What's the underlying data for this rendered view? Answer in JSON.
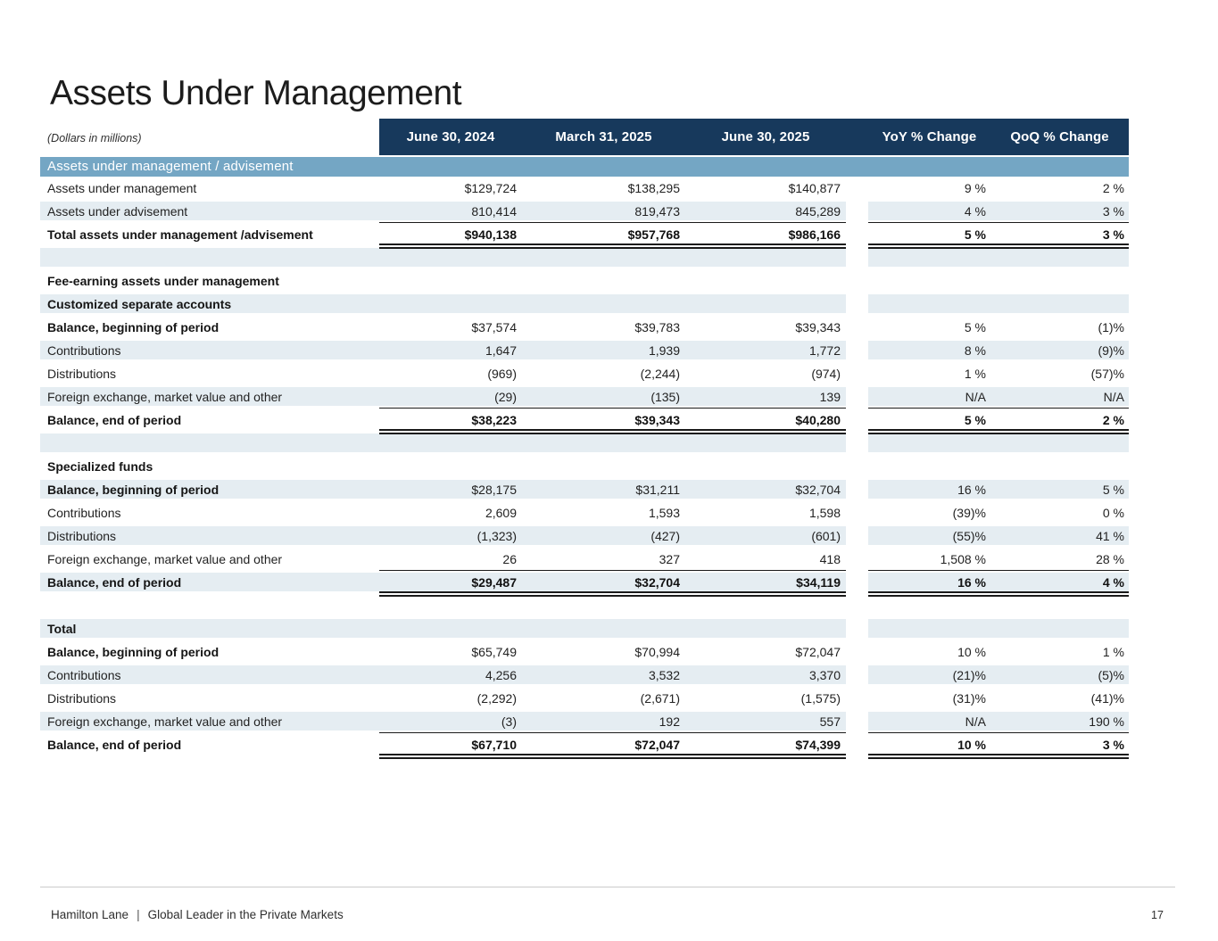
{
  "page": {
    "title": "Assets Under Management",
    "units_note": "(Dollars in millions)",
    "page_number": "17"
  },
  "footer": {
    "brand": "Hamilton Lane",
    "separator": "|",
    "tagline": "Global Leader in the Private Markets"
  },
  "colors": {
    "header_bg": "#17395C",
    "section_band_bg": "#74A6C4",
    "row_shading": "#E5EDF2",
    "rule_line": "#1A1A1A"
  },
  "table": {
    "columns": [
      "June 30, 2024",
      "March 31, 2025",
      "June 30, 2025",
      "YoY % Change",
      "QoQ % Change"
    ],
    "rows": [
      {
        "kind": "section",
        "name": "section-band-aum-advisement",
        "label": "Assets under management / advisement"
      },
      {
        "kind": "data",
        "name": "row-assets-under-management",
        "label": "Assets under management",
        "shaded": false,
        "values": [
          "$129,724",
          "$138,295",
          "$140,877",
          "9 %",
          "2 %"
        ]
      },
      {
        "kind": "data",
        "name": "row-assets-under-advisement",
        "label": "Assets under advisement",
        "shaded": true,
        "values": [
          "810,414",
          "819,473",
          "845,289",
          "4 %",
          "3 %"
        ]
      },
      {
        "kind": "data",
        "name": "row-total-aum-advisement",
        "label": "Total assets under management /advisement",
        "shaded": false,
        "bold_label": true,
        "bold_values": true,
        "rule_above": true,
        "rule_below": true,
        "values": [
          "$940,138",
          "$957,768",
          "$986,166",
          "5 %",
          "3 %"
        ]
      },
      {
        "kind": "spacer",
        "name": "spacer-1",
        "shaded": true
      },
      {
        "kind": "heading",
        "name": "row-fee-earning-heading",
        "label": "Fee-earning assets under management",
        "shaded": false
      },
      {
        "kind": "heading",
        "name": "row-customized-accounts-heading",
        "label": "Customized separate accounts",
        "shaded": true
      },
      {
        "kind": "data",
        "name": "row-csa-balance-beginning",
        "label": "Balance, beginning of period",
        "shaded": false,
        "bold_label": true,
        "values": [
          "$37,574",
          "$39,783",
          "$39,343",
          "5 %",
          "(1)%"
        ]
      },
      {
        "kind": "data",
        "name": "row-csa-contributions",
        "label": "Contributions",
        "shaded": true,
        "values": [
          "1,647",
          "1,939",
          "1,772",
          "8 %",
          "(9)%"
        ]
      },
      {
        "kind": "data",
        "name": "row-csa-distributions",
        "label": "Distributions",
        "shaded": false,
        "values": [
          "(969)",
          "(2,244)",
          "(974)",
          "1 %",
          "(57)%"
        ]
      },
      {
        "kind": "data",
        "name": "row-csa-fx-market-value",
        "label": "Foreign exchange, market value and other",
        "shaded": true,
        "values": [
          "(29)",
          "(135)",
          "139",
          "N/A",
          "N/A"
        ]
      },
      {
        "kind": "data",
        "name": "row-csa-balance-end",
        "label": "Balance, end of period",
        "shaded": false,
        "bold_label": true,
        "bold_values": true,
        "rule_above": true,
        "rule_below": true,
        "values": [
          "$38,223",
          "$39,343",
          "$40,280",
          "5 %",
          "2 %"
        ]
      },
      {
        "kind": "spacer",
        "name": "spacer-2",
        "shaded": true
      },
      {
        "kind": "heading",
        "name": "row-specialized-funds-heading",
        "label": "Specialized funds",
        "shaded": false
      },
      {
        "kind": "data",
        "name": "row-sf-balance-beginning",
        "label": "Balance, beginning of period",
        "shaded": true,
        "bold_label": true,
        "values": [
          "$28,175",
          "$31,211",
          "$32,704",
          "16 %",
          "5 %"
        ]
      },
      {
        "kind": "data",
        "name": "row-sf-contributions",
        "label": "Contributions",
        "shaded": false,
        "values": [
          "2,609",
          "1,593",
          "1,598",
          "(39)%",
          "0 %"
        ]
      },
      {
        "kind": "data",
        "name": "row-sf-distributions",
        "label": "Distributions",
        "shaded": true,
        "values": [
          "(1,323)",
          "(427)",
          "(601)",
          "(55)%",
          "41 %"
        ]
      },
      {
        "kind": "data",
        "name": "row-sf-fx-market-value",
        "label": "Foreign exchange, market value and other",
        "shaded": false,
        "values": [
          "26",
          "327",
          "418",
          "1,508 %",
          "28 %"
        ]
      },
      {
        "kind": "data",
        "name": "row-sf-balance-end",
        "label": "Balance, end of period",
        "shaded": true,
        "bold_label": true,
        "bold_values": true,
        "rule_above": true,
        "rule_below": true,
        "values": [
          "$29,487",
          "$32,704",
          "$34,119",
          "16 %",
          "4 %"
        ]
      },
      {
        "kind": "spacer",
        "name": "spacer-3",
        "shaded": false
      },
      {
        "kind": "heading",
        "name": "row-total-heading",
        "label": "Total",
        "shaded": true
      },
      {
        "kind": "data",
        "name": "row-total-balance-beginning",
        "label": "Balance, beginning of period",
        "shaded": false,
        "bold_label": true,
        "values": [
          "$65,749",
          "$70,994",
          "$72,047",
          "10 %",
          "1 %"
        ]
      },
      {
        "kind": "data",
        "name": "row-total-contributions",
        "label": "Contributions",
        "shaded": true,
        "values": [
          "4,256",
          "3,532",
          "3,370",
          "(21)%",
          "(5)%"
        ]
      },
      {
        "kind": "data",
        "name": "row-total-distributions",
        "label": "Distributions",
        "shaded": false,
        "values": [
          "(2,292)",
          "(2,671)",
          "(1,575)",
          "(31)%",
          "(41)%"
        ]
      },
      {
        "kind": "data",
        "name": "row-total-fx-market-value",
        "label": "Foreign exchange, market value and other",
        "shaded": true,
        "values": [
          "(3)",
          "192",
          "557",
          "N/A",
          "190 %"
        ]
      },
      {
        "kind": "data",
        "name": "row-total-balance-end",
        "label": "Balance, end of period",
        "shaded": false,
        "bold_label": true,
        "bold_values": true,
        "rule_above": true,
        "rule_below": true,
        "values": [
          "$67,710",
          "$72,047",
          "$74,399",
          "10 %",
          "3 %"
        ]
      }
    ]
  }
}
